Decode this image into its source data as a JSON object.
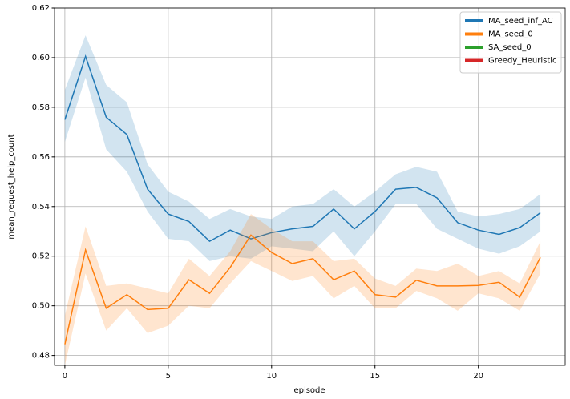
{
  "chart_data": {
    "type": "line",
    "x_label": "episode",
    "y_label": "mean_request_help_count",
    "x": [
      0,
      1,
      2,
      3,
      4,
      5,
      6,
      7,
      8,
      9,
      10,
      11,
      12,
      13,
      14,
      15,
      16,
      17,
      18,
      19,
      20,
      21,
      22,
      23
    ],
    "xlim": [
      -0.5,
      24.2
    ],
    "xticks": [
      0,
      5,
      10,
      15,
      20
    ],
    "ylim": [
      0.476,
      0.62
    ],
    "yticks": [
      0.48,
      {
        "value": 0.5,
        "label": "0.50"
      },
      0.52,
      0.54,
      0.56,
      0.58,
      {
        "value": 0.6,
        "label": "0.60"
      },
      0.62
    ],
    "grid": true,
    "legend": "upper right",
    "series": [
      {
        "name": "MA_seed_inf_AC",
        "color": "#1f77b4",
        "values": [
          0.575,
          0.6005,
          0.576,
          0.569,
          0.547,
          0.537,
          0.534,
          0.526,
          0.5305,
          0.527,
          0.5295,
          0.531,
          0.532,
          0.539,
          0.531,
          0.538,
          0.547,
          0.5477,
          0.5435,
          0.5335,
          0.5305,
          0.5288,
          0.5315,
          0.5375
        ],
        "lower": [
          0.566,
          0.592,
          0.563,
          0.554,
          0.538,
          0.527,
          0.526,
          0.518,
          0.52,
          0.519,
          0.524,
          0.523,
          0.522,
          0.53,
          0.52,
          0.53,
          0.541,
          0.541,
          0.531,
          0.527,
          0.523,
          0.521,
          0.524,
          0.53
        ],
        "upper": [
          0.587,
          0.609,
          0.589,
          0.582,
          0.557,
          0.546,
          0.542,
          0.535,
          0.539,
          0.536,
          0.535,
          0.54,
          0.541,
          0.547,
          0.54,
          0.546,
          0.553,
          0.556,
          0.554,
          0.538,
          0.536,
          0.537,
          0.539,
          0.545
        ]
      },
      {
        "name": "MA_seed_0",
        "color": "#ff7f0e",
        "values": [
          0.4845,
          0.5225,
          0.499,
          0.5045,
          0.4985,
          0.499,
          0.5105,
          0.505,
          0.5155,
          0.5285,
          0.5215,
          0.517,
          0.519,
          0.5105,
          0.514,
          0.5045,
          0.5035,
          0.5103,
          0.508,
          0.508,
          0.5082,
          0.5095,
          0.5035,
          0.5195
        ],
        "lower": [
          0.476,
          0.513,
          0.49,
          0.499,
          0.489,
          0.492,
          0.5,
          0.499,
          0.509,
          0.518,
          0.514,
          0.51,
          0.512,
          0.503,
          0.508,
          0.499,
          0.499,
          0.506,
          0.503,
          0.498,
          0.505,
          0.503,
          0.498,
          0.513
        ],
        "upper": [
          0.496,
          0.532,
          0.508,
          0.509,
          0.507,
          0.505,
          0.519,
          0.512,
          0.522,
          0.537,
          0.531,
          0.526,
          0.526,
          0.518,
          0.519,
          0.511,
          0.508,
          0.515,
          0.514,
          0.517,
          0.512,
          0.514,
          0.509,
          0.526
        ]
      },
      {
        "name": "SA_seed_0",
        "color": "#2ca02c"
      },
      {
        "name": "Greedy_Heuristic",
        "color": "#d62728"
      }
    ]
  }
}
